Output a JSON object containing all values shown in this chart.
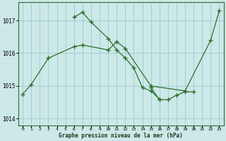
{
  "background_color": "#cce8e8",
  "grid_color": "#99cccc",
  "line_color": "#2d6e2d",
  "title": "Graphe pression niveau de la mer (hPa)",
  "xlim": [
    -0.5,
    23.5
  ],
  "ylim": [
    1013.8,
    1017.55
  ],
  "yticks": [
    1014,
    1015,
    1016,
    1017
  ],
  "xticks": [
    0,
    1,
    2,
    3,
    4,
    5,
    6,
    7,
    8,
    9,
    10,
    11,
    12,
    13,
    14,
    15,
    16,
    17,
    18,
    19,
    20,
    21,
    22,
    23
  ],
  "line1_x": [
    0,
    1,
    3,
    6,
    7,
    10,
    11,
    12,
    15,
    19,
    22,
    23
  ],
  "line1_y": [
    1014.75,
    1015.05,
    1015.85,
    1016.2,
    1016.25,
    1016.1,
    1016.35,
    1016.15,
    1015.0,
    1014.85,
    1016.4,
    1017.3
  ],
  "line2_x": [
    6,
    7,
    8,
    10,
    11,
    12,
    13,
    14,
    15,
    16
  ],
  "line2_y": [
    1017.1,
    1017.25,
    1016.95,
    1016.45,
    1016.1,
    1015.85,
    1015.55,
    1014.95,
    1014.85,
    1014.6
  ],
  "line3_x": [
    15,
    16,
    17,
    18,
    19,
    20
  ],
  "line3_y": [
    1014.95,
    1014.58,
    1014.58,
    1014.72,
    1014.82,
    1014.82
  ]
}
